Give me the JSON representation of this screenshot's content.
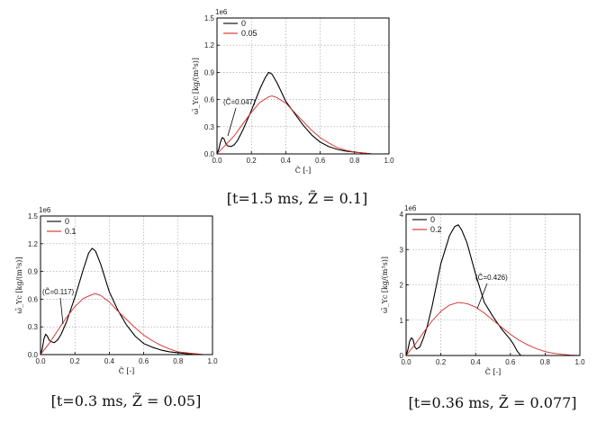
{
  "chart_data": [
    {
      "type": "line",
      "multiplier": "1e6",
      "xlabel": "C̃ [-]",
      "ylabel": "ω̄_Yc [kg/(m³s)]",
      "xlim": [
        0,
        1.0
      ],
      "ylim": [
        0,
        1.5
      ],
      "xticks": [
        "0.0",
        "0.2",
        "0.4",
        "0.6",
        "0.8",
        "1.0"
      ],
      "yticks": [
        "0.0",
        "0.3",
        "0.6",
        "0.9",
        "1.2",
        "1.5"
      ],
      "grid": true,
      "legend": "top-left",
      "annotation": "(C̃=0.047)",
      "annotation_point": [
        0.047,
        0.17
      ],
      "caption": "[t=1.5 ms, Z̃ = 0.1]",
      "series": [
        {
          "name": "0",
          "color": "#000000",
          "x": [
            0,
            0.01,
            0.02,
            0.03,
            0.04,
            0.05,
            0.06,
            0.08,
            0.1,
            0.12,
            0.15,
            0.2,
            0.25,
            0.28,
            0.3,
            0.32,
            0.35,
            0.4,
            0.45,
            0.5,
            0.55,
            0.6,
            0.65,
            0.7,
            0.75,
            0.8,
            0.85,
            0.9,
            0.95,
            1.0
          ],
          "y": [
            0,
            0.05,
            0.13,
            0.18,
            0.17,
            0.12,
            0.09,
            0.08,
            0.1,
            0.15,
            0.26,
            0.48,
            0.72,
            0.84,
            0.9,
            0.88,
            0.78,
            0.58,
            0.45,
            0.32,
            0.21,
            0.13,
            0.08,
            0.05,
            0.03,
            0.02,
            0.01,
            0.0,
            0.0,
            0.0
          ]
        },
        {
          "name": "0.05",
          "color": "#d42a2a",
          "x": [
            0,
            0.02,
            0.05,
            0.1,
            0.15,
            0.2,
            0.25,
            0.3,
            0.32,
            0.35,
            0.4,
            0.45,
            0.5,
            0.55,
            0.6,
            0.65,
            0.7,
            0.75,
            0.8,
            0.85,
            0.9,
            0.95,
            1.0
          ],
          "y": [
            0,
            0.04,
            0.1,
            0.2,
            0.33,
            0.46,
            0.57,
            0.63,
            0.64,
            0.62,
            0.56,
            0.46,
            0.36,
            0.26,
            0.18,
            0.12,
            0.07,
            0.04,
            0.02,
            0.01,
            0.0,
            0.0,
            0.0
          ]
        }
      ]
    },
    {
      "type": "line",
      "multiplier": "1e6",
      "xlabel": "C̃ [-]",
      "ylabel": "ω̄_Yc [kg/(m³s)]",
      "xlim": [
        0,
        1.0
      ],
      "ylim": [
        0,
        1.5
      ],
      "xticks": [
        "0.0",
        "0.2",
        "0.4",
        "0.6",
        "0.8",
        "1.0"
      ],
      "yticks": [
        "0.0",
        "0.3",
        "0.6",
        "0.9",
        "1.2",
        "1.5"
      ],
      "grid": true,
      "legend": "top-left",
      "annotation": "(C̃=0.117)",
      "annotation_point": [
        0.117,
        0.17
      ],
      "caption": "[t=0.3 ms, Z̃ = 0.05]",
      "series": [
        {
          "name": "0",
          "color": "#000000",
          "x": [
            0,
            0.01,
            0.02,
            0.03,
            0.04,
            0.05,
            0.06,
            0.08,
            0.1,
            0.12,
            0.15,
            0.2,
            0.25,
            0.28,
            0.3,
            0.32,
            0.35,
            0.4,
            0.45,
            0.5,
            0.55,
            0.6,
            0.65,
            0.7,
            0.75,
            0.8,
            0.85,
            0.9,
            0.95,
            1.0
          ],
          "y": [
            0,
            0.06,
            0.17,
            0.22,
            0.2,
            0.16,
            0.14,
            0.13,
            0.16,
            0.22,
            0.35,
            0.62,
            0.93,
            1.1,
            1.15,
            1.12,
            0.98,
            0.68,
            0.48,
            0.32,
            0.2,
            0.12,
            0.08,
            0.05,
            0.03,
            0.02,
            0.01,
            0.0,
            0.0,
            0.0
          ]
        },
        {
          "name": "0.1",
          "color": "#d42a2a",
          "x": [
            0,
            0.05,
            0.1,
            0.15,
            0.2,
            0.25,
            0.3,
            0.32,
            0.35,
            0.4,
            0.45,
            0.5,
            0.55,
            0.6,
            0.65,
            0.7,
            0.75,
            0.8,
            0.85,
            0.9,
            0.95,
            1.0
          ],
          "y": [
            0,
            0.12,
            0.26,
            0.4,
            0.52,
            0.61,
            0.65,
            0.66,
            0.64,
            0.57,
            0.47,
            0.38,
            0.29,
            0.21,
            0.15,
            0.1,
            0.06,
            0.03,
            0.02,
            0.01,
            0.0,
            0.0
          ]
        }
      ]
    },
    {
      "type": "line",
      "multiplier": "1e6",
      "xlabel": "C̃ [-]",
      "ylabel": "ω̄_Yc [kg/(m³s)]",
      "xlim": [
        0,
        1.0
      ],
      "ylim": [
        0,
        4
      ],
      "xticks": [
        "0.0",
        "0.2",
        "0.4",
        "0.6",
        "0.8",
        "1.0"
      ],
      "yticks": [
        "0",
        "1",
        "2",
        "3",
        "4"
      ],
      "grid": true,
      "legend": "top-left",
      "annotation": "(C̃=0.426)",
      "annotation_point": [
        0.426,
        1.5
      ],
      "caption": "[t=0.36 ms, Z̃ = 0.077]",
      "series": [
        {
          "name": "0",
          "color": "#000000",
          "x": [
            0,
            0.01,
            0.02,
            0.03,
            0.04,
            0.05,
            0.06,
            0.08,
            0.1,
            0.12,
            0.15,
            0.2,
            0.25,
            0.28,
            0.3,
            0.32,
            0.35,
            0.4,
            0.45,
            0.5,
            0.55,
            0.6,
            0.62,
            0.64,
            0.66
          ],
          "y": [
            0,
            0.15,
            0.4,
            0.5,
            0.45,
            0.25,
            0.18,
            0.25,
            0.5,
            0.8,
            1.4,
            2.6,
            3.4,
            3.65,
            3.7,
            3.55,
            3.2,
            2.3,
            1.5,
            1.1,
            0.75,
            0.45,
            0.3,
            0.12,
            0.0
          ]
        },
        {
          "name": "0.2",
          "color": "#d42a2a",
          "x": [
            0,
            0.05,
            0.1,
            0.15,
            0.2,
            0.25,
            0.3,
            0.35,
            0.4,
            0.45,
            0.5,
            0.55,
            0.6,
            0.65,
            0.7,
            0.75,
            0.8,
            0.85,
            0.9,
            0.95,
            1.0
          ],
          "y": [
            0,
            0.3,
            0.65,
            0.98,
            1.25,
            1.43,
            1.5,
            1.47,
            1.37,
            1.2,
            1.0,
            0.8,
            0.6,
            0.43,
            0.3,
            0.19,
            0.11,
            0.06,
            0.03,
            0.01,
            0.0
          ]
        }
      ]
    }
  ]
}
